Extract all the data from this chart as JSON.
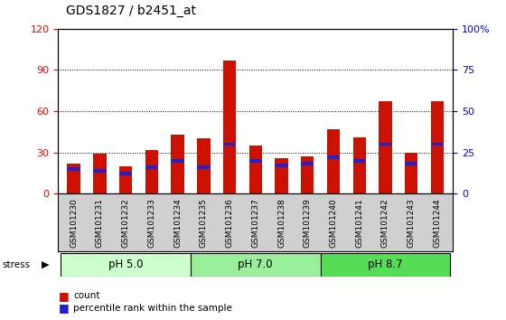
{
  "title": "GDS1827 / b2451_at",
  "samples": [
    "GSM101230",
    "GSM101231",
    "GSM101232",
    "GSM101233",
    "GSM101234",
    "GSM101235",
    "GSM101236",
    "GSM101237",
    "GSM101238",
    "GSM101239",
    "GSM101240",
    "GSM101241",
    "GSM101242",
    "GSM101243",
    "GSM101244"
  ],
  "counts": [
    22,
    29,
    20,
    32,
    43,
    40,
    97,
    35,
    26,
    27,
    47,
    41,
    67,
    30,
    67
  ],
  "percentile_ranks": [
    15,
    14,
    12,
    16,
    20,
    16,
    30,
    20,
    17,
    18,
    22,
    20,
    30,
    18,
    30
  ],
  "groups": [
    {
      "label": "pH 5.0",
      "start": 0,
      "end": 4,
      "color": "#ccffcc"
    },
    {
      "label": "pH 7.0",
      "start": 5,
      "end": 9,
      "color": "#99ee99"
    },
    {
      "label": "pH 8.7",
      "start": 10,
      "end": 14,
      "color": "#55dd55"
    }
  ],
  "stress_label": "stress",
  "bar_color": "#cc1100",
  "percentile_color": "#2222cc",
  "ylim_left": [
    0,
    120
  ],
  "yticks_left": [
    0,
    30,
    60,
    90,
    120
  ],
  "ytick_labels_right": [
    "0",
    "25",
    "50",
    "75",
    "100%"
  ],
  "grid_color": "black",
  "bar_width": 0.5,
  "xtick_bg": "#d0d0d0",
  "legend_square_size": 8
}
